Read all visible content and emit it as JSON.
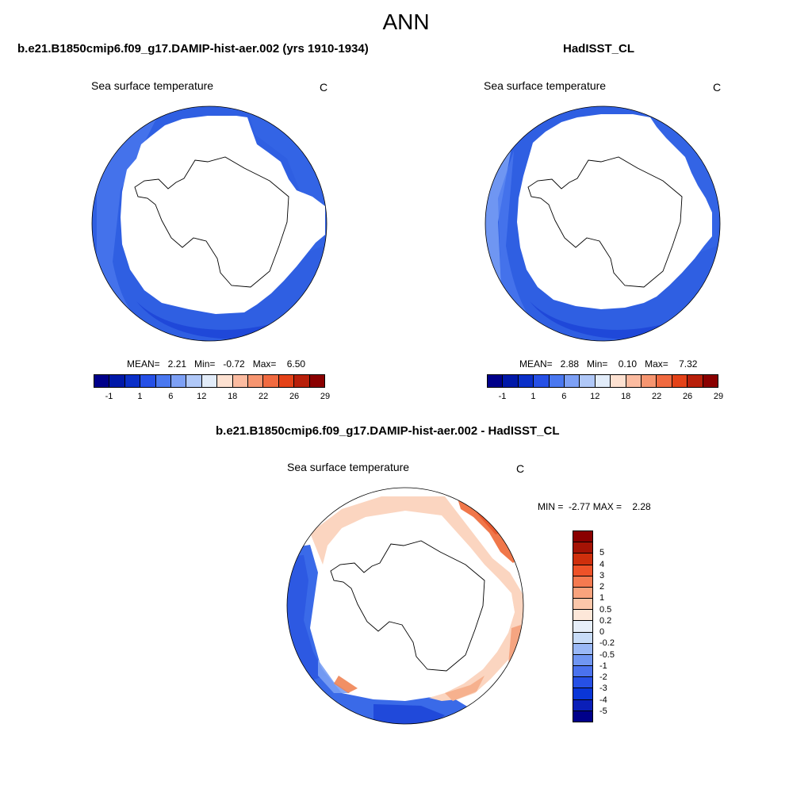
{
  "figure": {
    "title": "ANN"
  },
  "panels": {
    "left": {
      "title": "b.e21.B1850cmip6.f09_g17.DAMIP-hist-aer.002 (yrs 1910-1934)",
      "variable": "Sea surface temperature",
      "units": "C",
      "stats": "MEAN=   2.21   Min=   -0.72   Max=    6.50"
    },
    "right": {
      "title": "HadISST_CL",
      "variable": "Sea surface temperature",
      "units": "C",
      "stats": "MEAN=   2.88   Min=    0.10   Max=    7.32"
    },
    "diff": {
      "title": "b.e21.B1850cmip6.f09_g17.DAMIP-hist-aer.002 - HadISST_CL",
      "variable": "Sea surface temperature",
      "units": "C",
      "stats": "MIN =  -2.77 MAX =    2.28"
    }
  },
  "colorbar_abs": {
    "colors": [
      "#00008a",
      "#0018a8",
      "#0a2fc8",
      "#2650e6",
      "#4a78f0",
      "#7da0f5",
      "#b0c8f8",
      "#e2ecf9",
      "#fde1d1",
      "#fbbba0",
      "#f69570",
      "#f16a40",
      "#e44218",
      "#b81f0a",
      "#8a0000"
    ],
    "labels": [
      "-1",
      "1",
      "6",
      "12",
      "18",
      "22",
      "26",
      "29"
    ]
  },
  "colorbar_diff": {
    "colors": [
      "#00008a",
      "#0a1fb8",
      "#0a36d8",
      "#2650e6",
      "#4a72ee",
      "#7096f2",
      "#9ab8f6",
      "#c8dcf8",
      "#e6eef9",
      "#fde7d9",
      "#fcc7aa",
      "#f9a37d",
      "#f57a50",
      "#ee5228",
      "#cf2f0c",
      "#a51305",
      "#8a0000"
    ],
    "labels": [
      "-5",
      "-4",
      "-3",
      "-2",
      "-1",
      "-0.5",
      "-0.2",
      "0",
      "0.2",
      "0.5",
      "1",
      "2",
      "3",
      "4",
      "5"
    ]
  },
  "chart_data": [
    {
      "type": "heatmap",
      "name": "b.e21.B1850cmip6.f09_g17.DAMIP-hist-aer.002 (yrs 1910-1934)",
      "variable": "Sea surface temperature",
      "units": "C",
      "projection": "South polar stereographic",
      "mean": 2.21,
      "min": -0.72,
      "max": 6.5,
      "levels": [
        -1,
        1,
        6,
        12,
        18,
        22,
        26,
        29
      ]
    },
    {
      "type": "heatmap",
      "name": "HadISST_CL",
      "variable": "Sea surface temperature",
      "units": "C",
      "projection": "South polar stereographic",
      "mean": 2.88,
      "min": 0.1,
      "max": 7.32,
      "levels": [
        -1,
        1,
        6,
        12,
        18,
        22,
        26,
        29
      ]
    },
    {
      "type": "heatmap",
      "name": "b.e21.B1850cmip6.f09_g17.DAMIP-hist-aer.002 - HadISST_CL",
      "variable": "Sea surface temperature",
      "units": "C",
      "projection": "South polar stereographic",
      "min": -2.77,
      "max": 2.28,
      "levels": [
        -5,
        -4,
        -3,
        -2,
        -1,
        -0.5,
        -0.2,
        0,
        0.2,
        0.5,
        1,
        2,
        3,
        4,
        5
      ]
    }
  ]
}
